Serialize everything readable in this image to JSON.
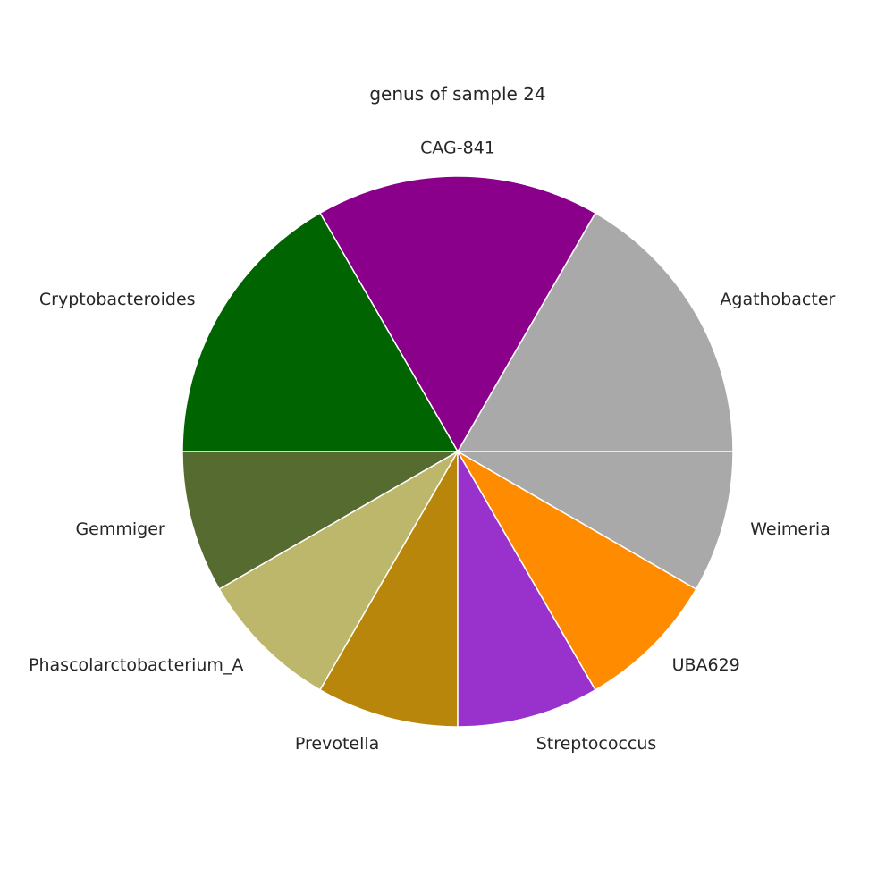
{
  "chart_data": {
    "type": "pie",
    "title": "genus of sample 24",
    "start_angle_deg": 0,
    "direction": "counterclockwise",
    "slices": [
      {
        "label": "Agathobacter",
        "value": 2,
        "color": "#a9a9a9"
      },
      {
        "label": "CAG-841",
        "value": 2,
        "color": "#8b008b"
      },
      {
        "label": "Cryptobacteroides",
        "value": 2,
        "color": "#006400"
      },
      {
        "label": "Gemmiger",
        "value": 1,
        "color": "#556b2f"
      },
      {
        "label": "Phascolarctobacterium_A",
        "value": 1,
        "color": "#bdb76b"
      },
      {
        "label": "Prevotella",
        "value": 1,
        "color": "#b8860b"
      },
      {
        "label": "Streptococcus",
        "value": 1,
        "color": "#9932cc"
      },
      {
        "label": "UBA629",
        "value": 1,
        "color": "#ff8c00"
      },
      {
        "label": "Weimeria",
        "value": 1,
        "color": "#a9a9a9"
      }
    ]
  }
}
